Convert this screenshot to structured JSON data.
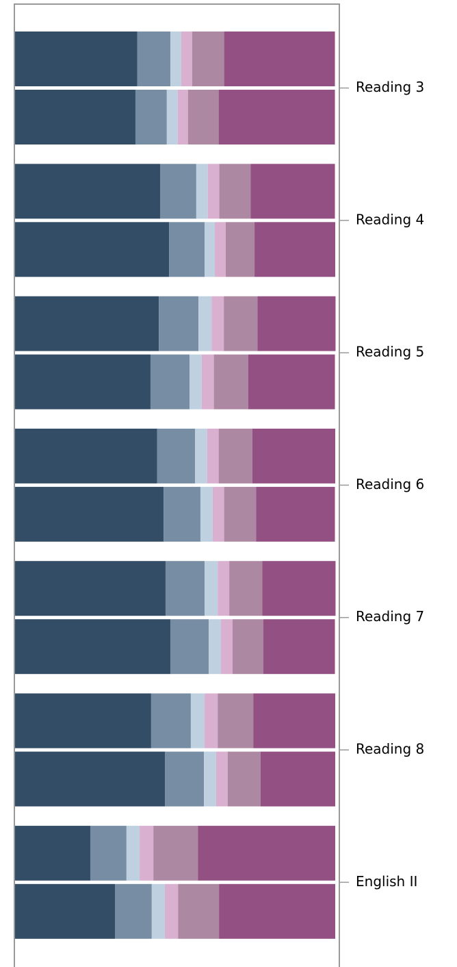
{
  "chart_data": {
    "type": "stacked-bar-horizontal",
    "categories": [
      "Reading 3",
      "Reading 4",
      "Reading 5",
      "Reading 6",
      "Reading 7",
      "Reading 8",
      "English II"
    ],
    "xlim": [
      0,
      100
    ],
    "series": [
      {
        "color": "#334d66",
        "values": [
          [
            38.2,
            37.6
          ],
          [
            45.3,
            48.1
          ],
          [
            44.9,
            42.3
          ],
          [
            44.4,
            46.4
          ],
          [
            47.0,
            48.5
          ],
          [
            42.5,
            46.8
          ],
          [
            23.5,
            31.2
          ]
        ]
      },
      {
        "color": "#778da3",
        "values": [
          [
            10.3,
            9.8
          ],
          [
            11.3,
            11.1
          ],
          [
            12.4,
            12.2
          ],
          [
            11.8,
            11.5
          ],
          [
            12.2,
            12.0
          ],
          [
            12.4,
            12.2
          ],
          [
            11.3,
            11.5
          ]
        ]
      },
      {
        "color": "#bfd0e0",
        "values": [
          [
            3.4,
            3.4
          ],
          [
            3.6,
            3.2
          ],
          [
            4.1,
            3.8
          ],
          [
            3.8,
            3.8
          ],
          [
            4.1,
            3.8
          ],
          [
            4.3,
            3.8
          ],
          [
            4.1,
            4.1
          ]
        ]
      },
      {
        "color": "#d9b0d0",
        "values": [
          [
            3.4,
            3.2
          ],
          [
            3.6,
            3.4
          ],
          [
            3.8,
            3.8
          ],
          [
            3.6,
            3.6
          ],
          [
            3.6,
            3.6
          ],
          [
            4.1,
            3.6
          ],
          [
            4.3,
            4.1
          ]
        ]
      },
      {
        "color": "#ad88a3",
        "values": [
          [
            10.0,
            9.6
          ],
          [
            9.8,
            9.0
          ],
          [
            10.5,
            10.7
          ],
          [
            10.5,
            10.0
          ],
          [
            10.3,
            9.6
          ],
          [
            11.1,
            10.3
          ],
          [
            13.9,
            12.8
          ]
        ]
      },
      {
        "color": "#935083",
        "values": [
          [
            34.6,
            36.3
          ],
          [
            26.3,
            25.2
          ],
          [
            24.4,
            27.1
          ],
          [
            25.9,
            24.6
          ],
          [
            22.9,
            22.4
          ],
          [
            25.6,
            23.3
          ],
          [
            42.9,
            36.3
          ]
        ]
      }
    ]
  }
}
